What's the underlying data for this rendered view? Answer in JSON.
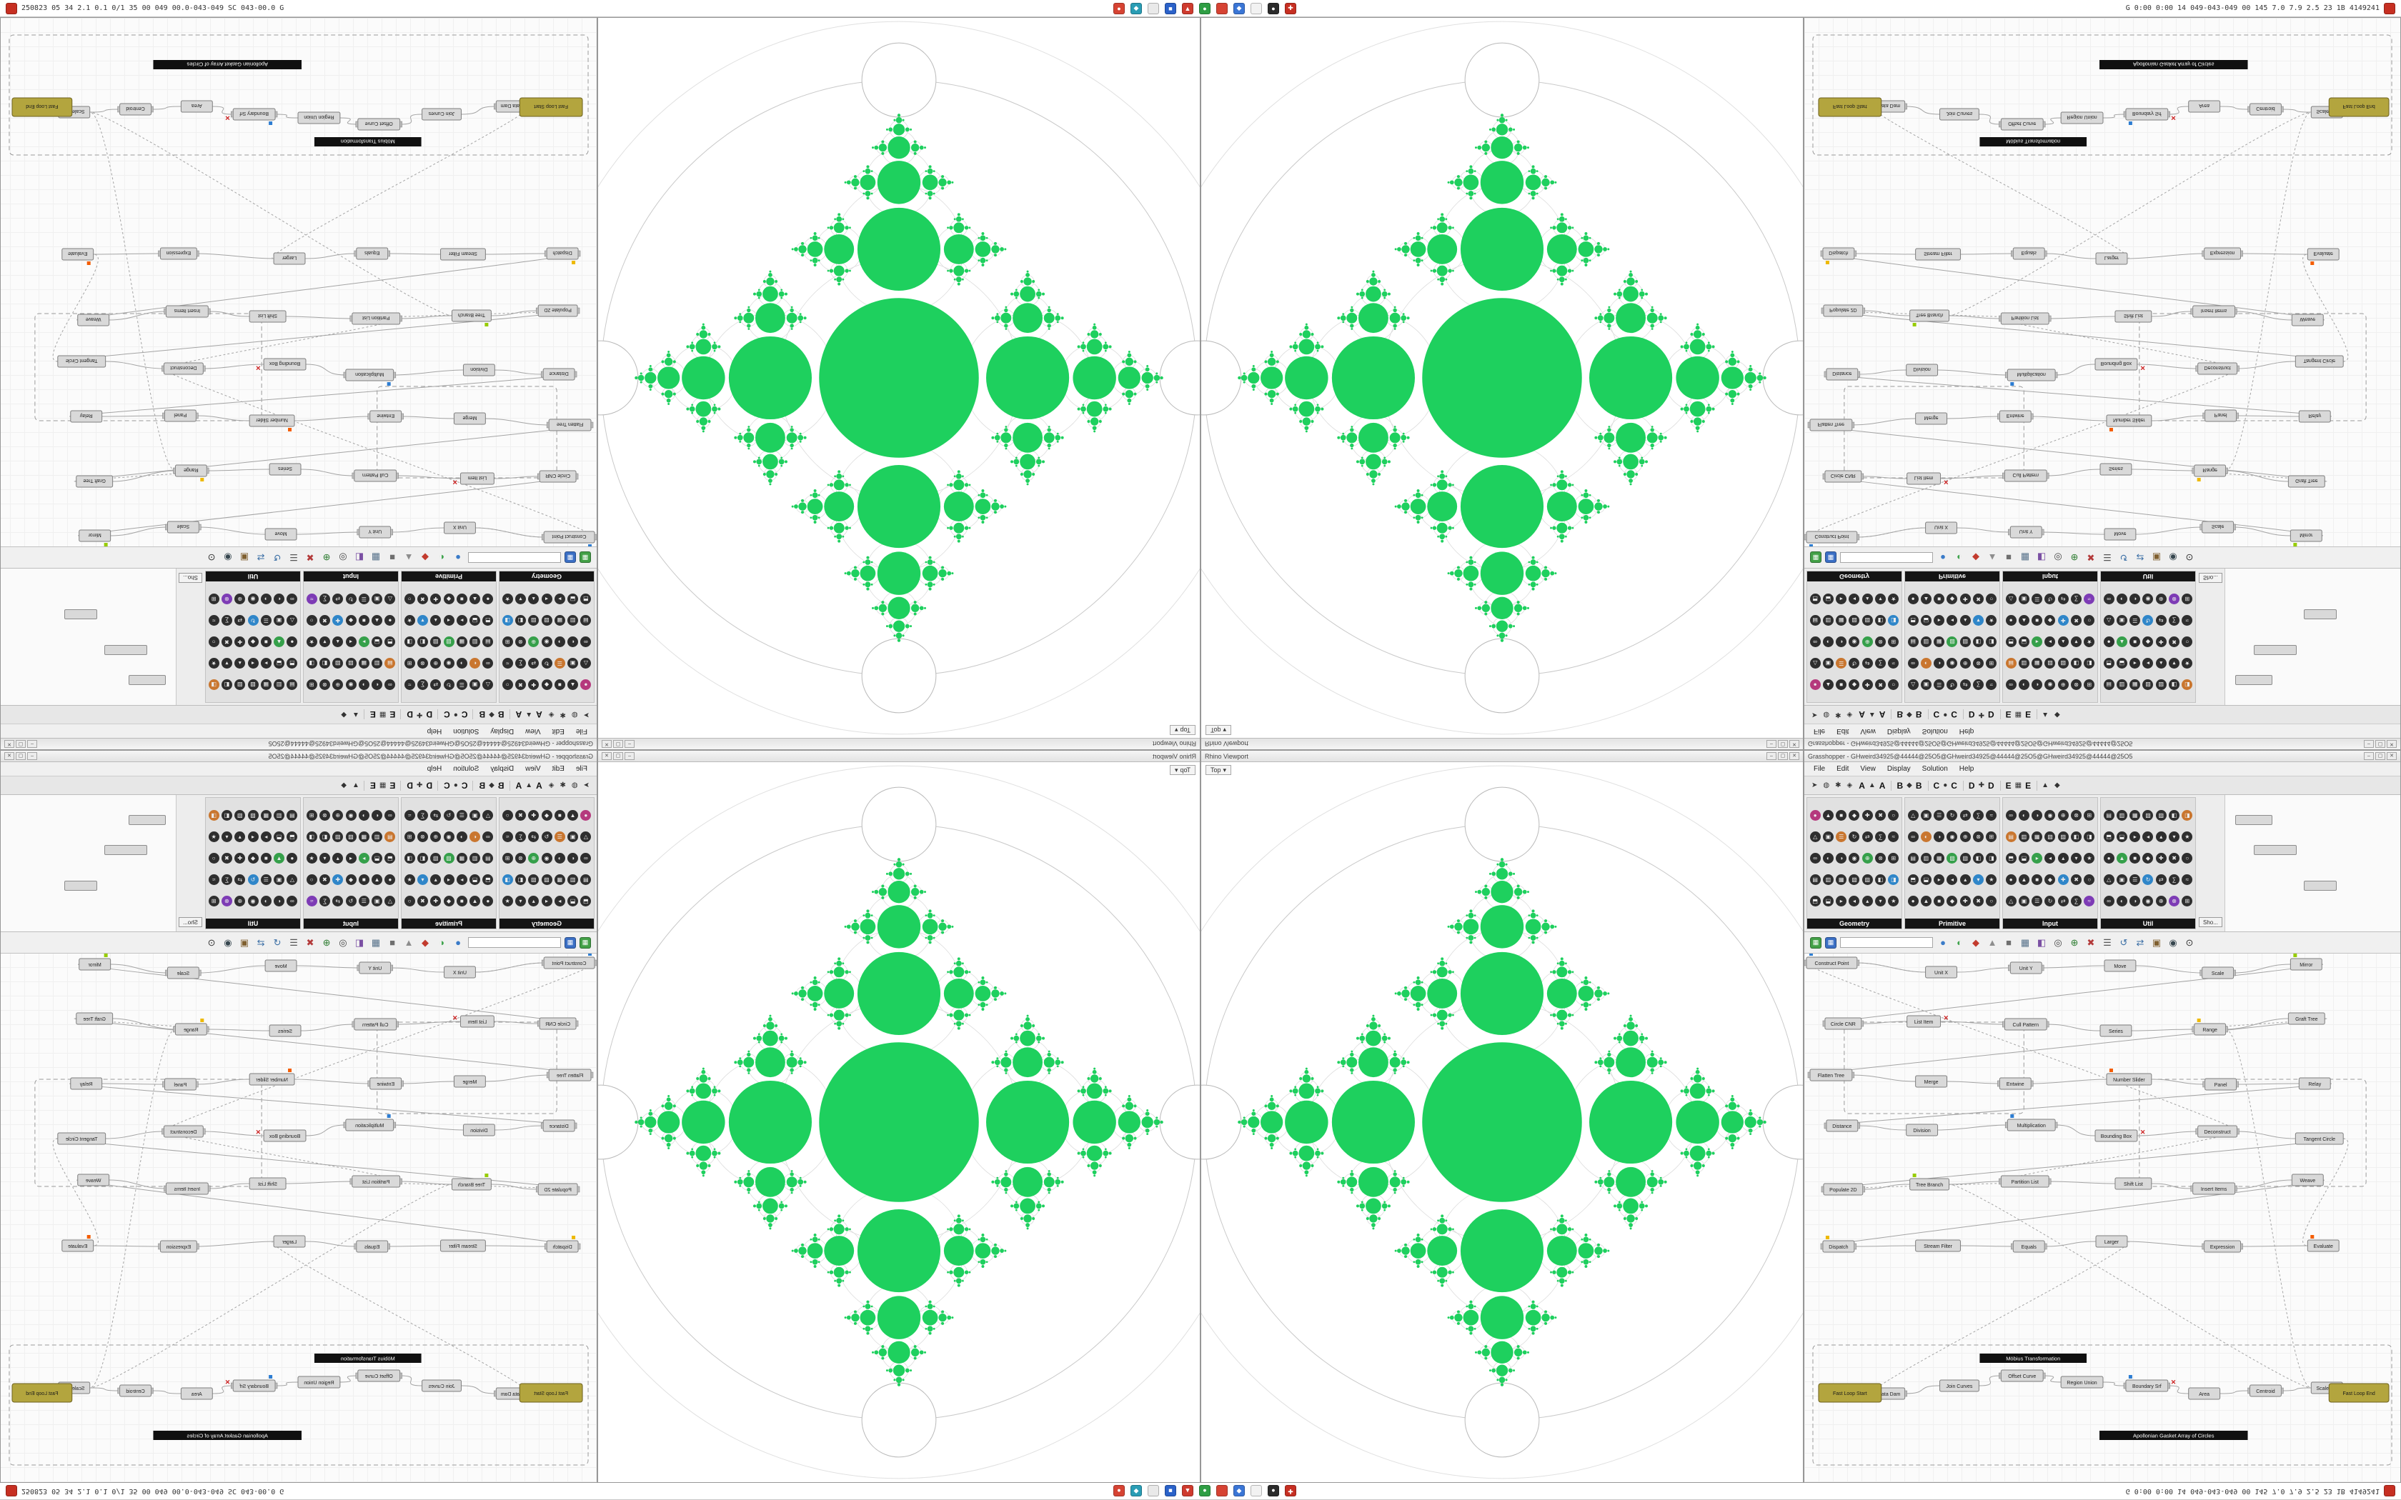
{
  "os_bar": {
    "left_icon": {
      "name": "recorder-icon",
      "color": "#c62f22"
    },
    "left_text": "250823 05 34 2.1 0.1 0/1 35 00 049 00.0-043-049 SC 043-00.0 G",
    "right_text": "G 0:00 0:00 14 049-043-049 00 145 7.0 7.9 2.5 23 1B 4149241",
    "right_icon": {
      "name": "record-stop-icon",
      "color": "#c62f22"
    },
    "icons": [
      {
        "name": "app-red-icon",
        "color": "#d64333",
        "glyph": "●"
      },
      {
        "name": "app-teal-icon",
        "color": "#2a9db5",
        "glyph": "◆"
      },
      {
        "name": "app-light-icon",
        "color": "#e9e9e9",
        "glyph": ""
      },
      {
        "name": "app-blue-icon",
        "color": "#2b62c9",
        "glyph": "■"
      },
      {
        "name": "app-red2-icon",
        "color": "#cf3b2e",
        "glyph": "▲"
      },
      {
        "name": "app-green-icon",
        "color": "#2f9e44",
        "glyph": "●"
      },
      {
        "name": "app-red3-icon",
        "color": "#d64333",
        "glyph": ""
      },
      {
        "name": "app-blue2-icon",
        "color": "#3b76d6",
        "glyph": "◆"
      },
      {
        "name": "app-white-icon",
        "color": "#f2f2f2",
        "glyph": ""
      },
      {
        "name": "app-dark-icon",
        "color": "#2b2b2b",
        "glyph": "●"
      },
      {
        "name": "app-red4-icon",
        "color": "#c62f22",
        "glyph": "✚"
      }
    ]
  },
  "quadrant": {
    "viewport": {
      "title": "Rhino Viewport",
      "tab": "Top",
      "tab_caret": "▾",
      "buttons": [
        "–",
        "▢",
        "✕"
      ],
      "fractal": {
        "green": "#1ed05e",
        "ring": "#dcdcdc",
        "big_ring": "#c9c9c9",
        "white_stroke": "#b9b9b9"
      }
    },
    "gh": {
      "title": "Grasshopper - GHweird34925@44444@25O5@GHweird34925@44444@25O5@GHweird34925@44444@25O5",
      "buttons": [
        "–",
        "▢",
        "✕"
      ],
      "menus": [
        "File",
        "Edit",
        "View",
        "Display",
        "Solution",
        "Help"
      ],
      "tabs": {
        "left_icons": [
          "➤",
          "◍",
          "✱",
          "◈"
        ],
        "letters": [
          "A",
          "B",
          "C",
          "D",
          "E"
        ],
        "pair_icons": [
          "▲",
          "◆",
          "●",
          "✚",
          "▦"
        ]
      },
      "palette": {
        "groups": [
          {
            "name": "Geometry"
          },
          {
            "name": "Primitive"
          },
          {
            "name": "Input"
          },
          {
            "name": "Util"
          }
        ],
        "show_more": "Sho...",
        "glyphs": [
          "●",
          "▲",
          "■",
          "◆",
          "✚",
          "✖",
          "○",
          "△",
          "▣",
          "☰",
          "↻",
          "⇄",
          "∑",
          "≈",
          "∞",
          "◐",
          "◑",
          "◉",
          "⊕",
          "⊗",
          "⊞",
          "▤",
          "▥",
          "▦",
          "▧",
          "▨",
          "◧",
          "◨",
          "⬒",
          "⬓",
          "▸",
          "◂",
          "▴",
          "▾",
          "★"
        ],
        "accent_colors": [
          "#b5397d",
          "#7d3bb5",
          "#2f86c9",
          "#35a04a",
          "#c9762f"
        ]
      },
      "toolbar": {
        "buttons": [
          {
            "name": "grid-green-button",
            "glyph": "▦",
            "color": "#43a047"
          },
          {
            "name": "grid-blue-button",
            "glyph": "▦",
            "color": "#3b6fc4"
          }
        ],
        "search_placeholder": "",
        "icons": [
          {
            "name": "sphere-blue-icon",
            "glyph": "●",
            "color": "#3a7bc8"
          },
          {
            "name": "sphere-shaded-icon",
            "glyph": "◐",
            "color": "#3fa34d"
          },
          {
            "name": "gem-red-icon",
            "glyph": "◆",
            "color": "#c23b2e"
          },
          {
            "name": "pyramid-icon",
            "glyph": "▲",
            "color": "#8d8d8d"
          },
          {
            "name": "cube-icon",
            "glyph": "■",
            "color": "#6f6f6f"
          },
          {
            "name": "mesh-icon",
            "glyph": "▦",
            "color": "#557089"
          },
          {
            "name": "slice-icon",
            "glyph": "◧",
            "color": "#7a4fa3"
          },
          {
            "name": "target-icon",
            "glyph": "◎",
            "color": "#444444"
          },
          {
            "name": "crosshair-icon",
            "glyph": "⊕",
            "color": "#2e7d32"
          },
          {
            "name": "cancel-icon",
            "glyph": "✖",
            "color": "#b33a3a"
          },
          {
            "name": "list-icon",
            "glyph": "☰",
            "color": "#555555"
          },
          {
            "name": "undo-icon",
            "glyph": "↺",
            "color": "#3a6ea5"
          },
          {
            "name": "swap-icon",
            "glyph": "⇄",
            "color": "#3a6ea5"
          },
          {
            "name": "grid-icon",
            "glyph": "▣",
            "color": "#806030"
          },
          {
            "name": "eye-icon",
            "glyph": "◉",
            "color": "#37474f"
          },
          {
            "name": "zoom-icon",
            "glyph": "⊙",
            "color": "#333333"
          }
        ]
      },
      "canvas": {
        "wire_color": "#a4a4a4",
        "nodes": [
          "Construct Point",
          "Unit X",
          "Unit Y",
          "Move",
          "Scale",
          "Mirror",
          "Circle CNR",
          "List Item",
          "Cull Pattern",
          "Series",
          "Range",
          "Graft Tree",
          "Flatten Tree",
          "Merge",
          "Entwine",
          "Number Slider",
          "Panel",
          "Relay",
          "Distance",
          "Division",
          "Multiplication",
          "Bounding Box",
          "Deconstruct",
          "Tangent Circle",
          "Populate 2D",
          "Tree Branch",
          "Partition List",
          "Shift List",
          "Insert Items",
          "Weave",
          "Dispatch",
          "Stream Filter",
          "Equals",
          "Larger",
          "Expression",
          "Evaluate",
          "Data Dam",
          "Join Curves",
          "Offset Curve",
          "Region Union",
          "Boundary Srf",
          "Area",
          "Centroid",
          "Scale NU"
        ],
        "loop_start": "Fast Loop Start",
        "loop_end": "Fast Loop End",
        "black_panels": [
          "Möbius Transformation",
          "Apollonian Gasket Array of Circles"
        ],
        "error_mark": "✕"
      }
    }
  }
}
